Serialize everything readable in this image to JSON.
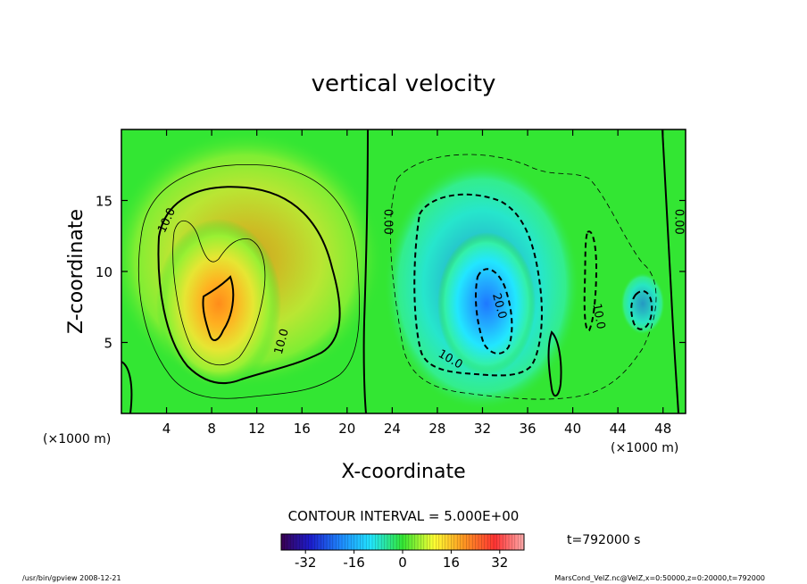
{
  "chart_data": {
    "type": "contour",
    "title": "vertical velocity",
    "xlabel": "X-coordinate",
    "ylabel": "Z-coordinate",
    "x_unit": "(×1000 m)",
    "x_unit_right": "(×1000 m)",
    "xlim": [
      0,
      50
    ],
    "ylim": [
      0,
      20
    ],
    "xticks": [
      4,
      8,
      12,
      16,
      20,
      24,
      28,
      32,
      36,
      40,
      44,
      48
    ],
    "yticks": [
      5,
      10,
      15
    ],
    "contour_interval_label": "CONTOUR INTERVAL = 5.000E+00",
    "contour_levels": [
      -20,
      -10,
      -5,
      0,
      5,
      10,
      20
    ],
    "contour_labels": [
      {
        "text": "10.0",
        "x": 4.3,
        "y": 13.5,
        "angle": -65
      },
      {
        "text": "0.00",
        "x": 23.3,
        "y": 13.5,
        "angle": 90
      },
      {
        "text": "0.00",
        "x": 49.1,
        "y": 13.5,
        "angle": 90
      },
      {
        "text": "10.0",
        "x": 14.5,
        "y": 5.0,
        "angle": -75
      },
      {
        "text": "20.0",
        "x": 33.2,
        "y": 7.5,
        "angle": 75
      },
      {
        "text": "10.0",
        "x": 42.0,
        "y": 6.8,
        "angle": 80
      },
      {
        "text": "10.0",
        "x": 29.0,
        "y": 3.6,
        "angle": 30
      }
    ],
    "fields": [
      {
        "sign": "positive",
        "peak": 35,
        "center": [
          9.2,
          7.8
        ],
        "extent": [
          7,
          6
        ]
      },
      {
        "sign": "negative",
        "peak": -28,
        "center": [
          32.5,
          7.5
        ],
        "extent": [
          6,
          5
        ]
      }
    ],
    "colorbar": {
      "ticks": [
        -32,
        -16,
        0,
        16,
        32
      ],
      "range": [
        -40,
        40
      ],
      "colors": [
        "#3a0050",
        "#1c1ccc",
        "#1e8cff",
        "#22e6ff",
        "#33e633",
        "#ffff33",
        "#ff9922",
        "#ff3333",
        "#ffaaaa"
      ]
    },
    "time_label": "t=792000  s"
  },
  "footer": {
    "left": "/usr/bin/gpview  2008-12-21",
    "right": "MarsCond_VelZ.nc@VelZ,x=0:50000,z=0:20000,t=792000"
  }
}
